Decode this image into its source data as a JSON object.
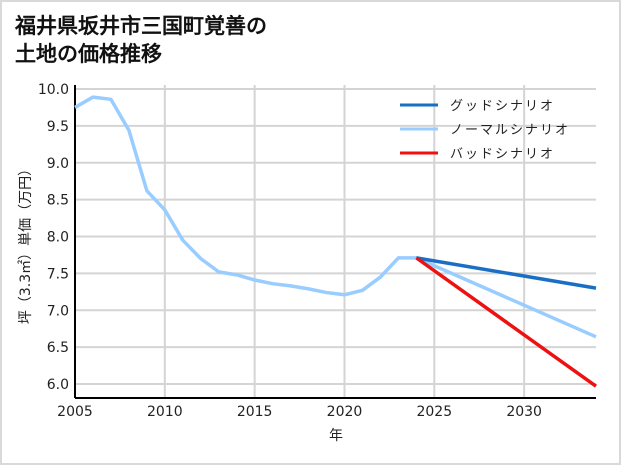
{
  "title": "福井県坂井市三国町覚善の\n土地の価格推移",
  "chart_data": {
    "type": "line",
    "title": "福井県坂井市三国町覚善の土地の価格推移",
    "xlabel": "年",
    "ylabel": "坪（3.3㎡）単価（万円）",
    "xlim": [
      2005,
      2034
    ],
    "ylim": [
      5.8,
      10.0
    ],
    "xticks": [
      2005,
      2010,
      2015,
      2020,
      2025,
      2030
    ],
    "yticks": [
      6.0,
      6.5,
      7.0,
      7.5,
      8.0,
      8.5,
      9.0,
      9.5,
      10.0
    ],
    "grid": true,
    "legend_position": "upper right",
    "series": [
      {
        "name": "グッドシナリオ",
        "color": "#1a6fc4",
        "x": [
          2024,
          2034
        ],
        "y": [
          7.71,
          7.3
        ]
      },
      {
        "name": "ノーマルシナリオ",
        "color": "#99ccff",
        "x": [
          2005,
          2006,
          2007,
          2008,
          2009,
          2010,
          2011,
          2012,
          2013,
          2014,
          2015,
          2016,
          2017,
          2018,
          2019,
          2020,
          2021,
          2022,
          2023,
          2024,
          2034
        ],
        "y": [
          9.75,
          9.89,
          9.86,
          9.44,
          8.62,
          8.36,
          7.95,
          7.7,
          7.52,
          7.48,
          7.41,
          7.36,
          7.33,
          7.29,
          7.24,
          7.21,
          7.27,
          7.45,
          7.71,
          7.71,
          6.64
        ]
      },
      {
        "name": "バッドシナリオ",
        "color": "#ee1111",
        "x": [
          2024,
          2034
        ],
        "y": [
          7.71,
          5.97
        ]
      }
    ]
  }
}
